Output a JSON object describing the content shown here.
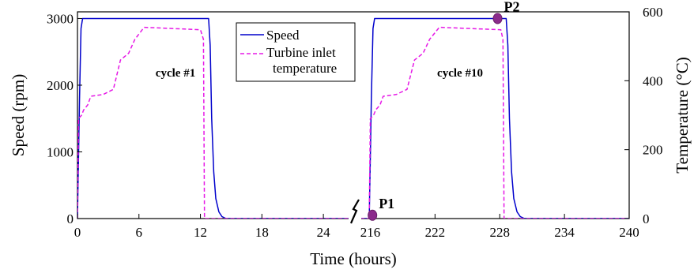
{
  "chart_data": {
    "type": "line",
    "xlabel": "Time (hours)",
    "ylabel_left": "Speed (rpm)",
    "ylabel_right": "Temperature (°C)",
    "x_tick_labels": [
      "0",
      "6",
      "12",
      "18",
      "24",
      "216",
      "222",
      "228",
      "234",
      "240"
    ],
    "y_left_ticks": [
      "0",
      "1000",
      "2000",
      "3000"
    ],
    "y_right_ticks": [
      "0",
      "200",
      "400",
      "600"
    ],
    "y_left_range": [
      0,
      3100
    ],
    "y_right_range": [
      0,
      600
    ],
    "grid": false,
    "legend_position": "top-center",
    "annotations": [
      "cycle #1",
      "cycle #10"
    ],
    "points": [
      {
        "label": "P1",
        "segment": 2,
        "x": 216.2,
        "y_speed": 50
      },
      {
        "label": "P2",
        "segment": 2,
        "x": 227.8,
        "y_speed": 3000
      }
    ],
    "series": [
      {
        "name": "Speed",
        "axis": "left",
        "color": "#0000cc",
        "dash": "solid",
        "segments": [
          [
            [
              0,
              0
            ],
            [
              0.1,
              900
            ],
            [
              0.2,
              1800
            ],
            [
              0.35,
              2850
            ],
            [
              0.5,
              3000
            ],
            [
              12.8,
              3000
            ],
            [
              12.95,
              2600
            ],
            [
              13.1,
              1500
            ],
            [
              13.3,
              700
            ],
            [
              13.5,
              300
            ],
            [
              13.8,
              100
            ],
            [
              14.1,
              30
            ],
            [
              14.5,
              0
            ],
            [
              27,
              0
            ]
          ],
          [
            [
              214.5,
              0
            ],
            [
              215.9,
              0
            ],
            [
              216.0,
              900
            ],
            [
              216.1,
              1800
            ],
            [
              216.25,
              2850
            ],
            [
              216.4,
              3000
            ],
            [
              228.6,
              3000
            ],
            [
              228.75,
              2600
            ],
            [
              228.9,
              1500
            ],
            [
              229.1,
              700
            ],
            [
              229.3,
              300
            ],
            [
              229.6,
              100
            ],
            [
              229.9,
              30
            ],
            [
              230.3,
              0
            ],
            [
              240,
              0
            ]
          ]
        ]
      },
      {
        "name": "Turbine inlet temperature",
        "axis": "right",
        "color": "#e619e6",
        "dash": "dashed",
        "segments": [
          [
            [
              0,
              0
            ],
            [
              0.1,
              290
            ],
            [
              0.4,
              300
            ],
            [
              0.6,
              315
            ],
            [
              1,
              330
            ],
            [
              1.3,
              355
            ],
            [
              2.5,
              360
            ],
            [
              3.5,
              375
            ],
            [
              4.2,
              460
            ],
            [
              5,
              480
            ],
            [
              5.6,
              520
            ],
            [
              6.5,
              555
            ],
            [
              9,
              552
            ],
            [
              12,
              548
            ],
            [
              12.3,
              520
            ],
            [
              12.4,
              0
            ],
            [
              27,
              0
            ]
          ],
          [
            [
              214.5,
              0
            ],
            [
              215.9,
              0
            ],
            [
              216.0,
              290
            ],
            [
              216.3,
              300
            ],
            [
              216.5,
              315
            ],
            [
              216.9,
              330
            ],
            [
              217.2,
              355
            ],
            [
              218.4,
              360
            ],
            [
              219.4,
              375
            ],
            [
              220.1,
              460
            ],
            [
              220.9,
              480
            ],
            [
              221.5,
              520
            ],
            [
              222.4,
              555
            ],
            [
              225,
              552
            ],
            [
              228.1,
              548
            ],
            [
              228.3,
              520
            ],
            [
              228.4,
              0
            ],
            [
              240,
              0
            ]
          ]
        ]
      }
    ]
  }
}
